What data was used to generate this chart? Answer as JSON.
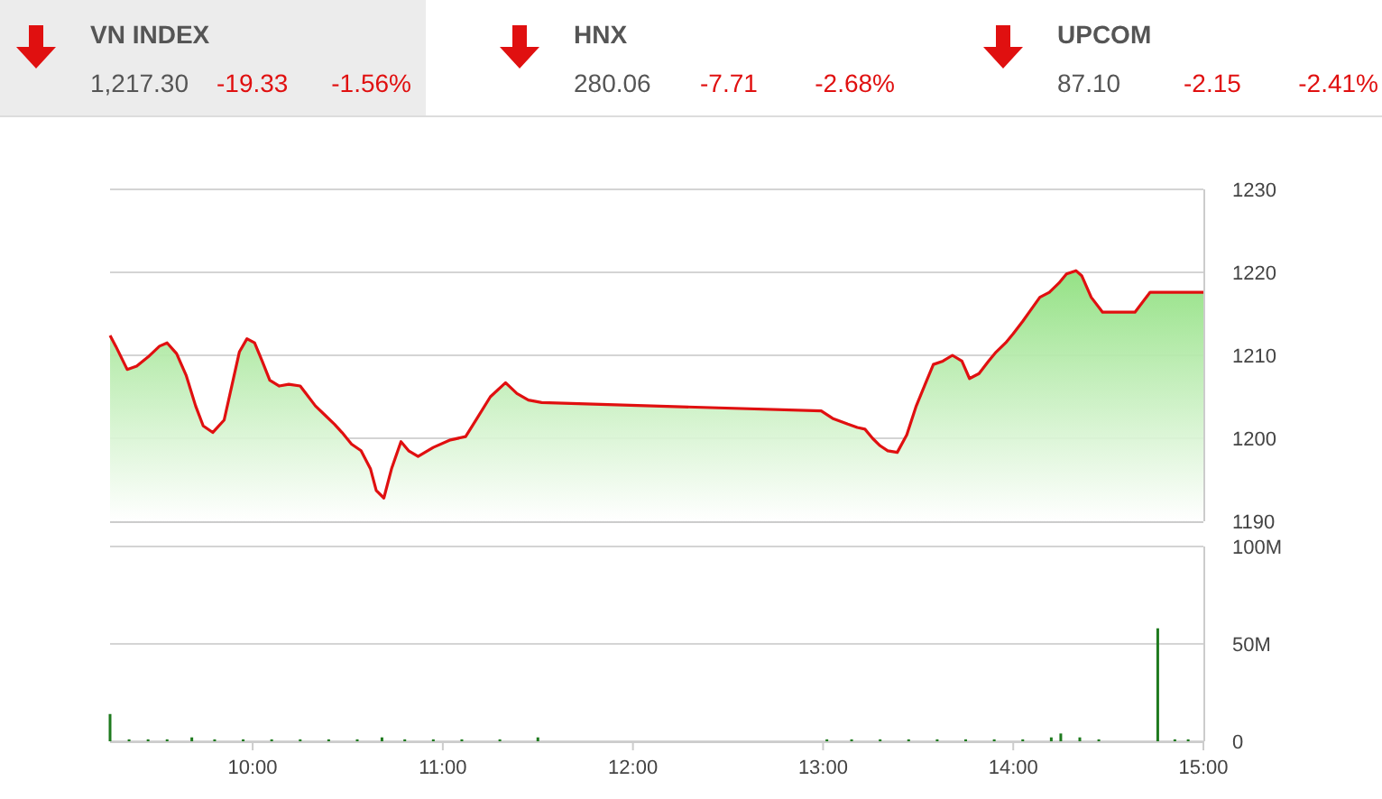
{
  "chart_data": [
    {
      "type": "other",
      "annotations": [
        "VN INDEX",
        "1,217.30",
        "-19.33",
        "-1.56%",
        "HNX",
        "280.06",
        "-7.71",
        "-2.68%",
        "UPCOM",
        "87.10",
        "-2.15",
        "-2.41%"
      ]
    },
    {
      "type": "area",
      "x": [
        9.25,
        9.28,
        9.34,
        9.39,
        9.45,
        9.51,
        9.55,
        9.6,
        9.65,
        9.7,
        9.74,
        9.79,
        9.85,
        9.89,
        9.93,
        9.97,
        10.01,
        10.05,
        10.09,
        10.14,
        10.19,
        10.25,
        10.28,
        10.33,
        10.38,
        10.43,
        10.47,
        10.52,
        10.57,
        10.62,
        10.65,
        10.69,
        10.73,
        10.78,
        10.82,
        10.87,
        10.95,
        11.04,
        11.12,
        11.18,
        11.25,
        11.33,
        11.39,
        11.45,
        11.52,
        12.99,
        13.05,
        13.13,
        13.18,
        13.22,
        13.26,
        13.3,
        13.34,
        13.39,
        13.44,
        13.49,
        13.54,
        13.58,
        13.63,
        13.68,
        13.73,
        13.77,
        13.82,
        13.87,
        13.91,
        13.96,
        14,
        14.05,
        14.09,
        14.14,
        14.19,
        14.24,
        14.28,
        14.33,
        14.36,
        14.41,
        14.47,
        14.64,
        14.72,
        15
      ],
      "series": [
        {
          "color": "#e01010",
          "values": [
            1212.4,
            1211.1,
            1208.3,
            1208.7,
            1209.8,
            1211.1,
            1211.5,
            1210.2,
            1207.6,
            1203.9,
            1201.5,
            1200.7,
            1202.2,
            1206.3,
            1210.4,
            1212,
            1211.5,
            1209.3,
            1207,
            1206.3,
            1206.5,
            1206.3,
            1205.4,
            1203.9,
            1202.8,
            1201.7,
            1200.7,
            1199.3,
            1198.5,
            1196.3,
            1193.7,
            1192.8,
            1196.3,
            1199.6,
            1198.5,
            1197.8,
            1198.9,
            1199.8,
            1200.2,
            1202.4,
            1205,
            1206.7,
            1205.4,
            1204.6,
            1204.3,
            1203.3,
            1202.4,
            1201.7,
            1201.3,
            1201.1,
            1200,
            1199.1,
            1198.5,
            1198.3,
            1200.4,
            1203.9,
            1206.7,
            1208.9,
            1209.3,
            1210,
            1209.3,
            1207.2,
            1207.8,
            1209.3,
            1210.4,
            1211.5,
            1212.6,
            1214.1,
            1215.4,
            1217,
            1217.6,
            1218.7,
            1219.8,
            1220.2,
            1219.6,
            1217,
            1215.2,
            1215.2,
            1217.6,
            1217.6
          ]
        }
      ],
      "xlim": [
        9.25,
        15
      ],
      "ylim": [
        1190,
        1230
      ],
      "yticks": [
        1190,
        1200,
        1210,
        1220,
        1230
      ],
      "grid": "y",
      "tick_labels": "y"
    },
    {
      "type": "bar",
      "x": [
        9.25,
        9.35,
        9.45,
        9.55,
        9.68,
        9.8,
        9.95,
        10.1,
        10.25,
        10.4,
        10.55,
        10.68,
        10.8,
        10.95,
        11.1,
        11.3,
        11.5,
        13.02,
        13.15,
        13.3,
        13.45,
        13.6,
        13.75,
        13.9,
        14.05,
        14.2,
        14.25,
        14.35,
        14.45,
        14.76,
        14.85,
        14.92
      ],
      "series": [
        {
          "color": "#1e7a1e",
          "values": [
            14,
            1,
            1,
            1,
            2,
            1,
            1,
            1,
            1,
            1,
            1,
            2,
            1,
            1,
            1,
            1,
            2,
            1,
            1,
            1,
            1,
            1,
            1,
            1,
            1,
            2,
            4,
            2,
            1,
            58,
            1,
            1
          ]
        }
      ],
      "xlim": [
        9.25,
        15
      ],
      "xticks": [
        {
          "value": 10,
          "label": "10:00"
        },
        {
          "value": 11,
          "label": "11:00"
        },
        {
          "value": 12,
          "label": "12:00"
        },
        {
          "value": 13,
          "label": "13:00"
        },
        {
          "value": 14,
          "label": "14:00"
        },
        {
          "value": 15,
          "label": "15:00"
        }
      ],
      "ylim": [
        0,
        100
      ],
      "yticks": [
        0,
        {
          "value": 50,
          "label": "50M"
        },
        {
          "value": 100,
          "label": "100M"
        }
      ],
      "grid": "y"
    }
  ]
}
